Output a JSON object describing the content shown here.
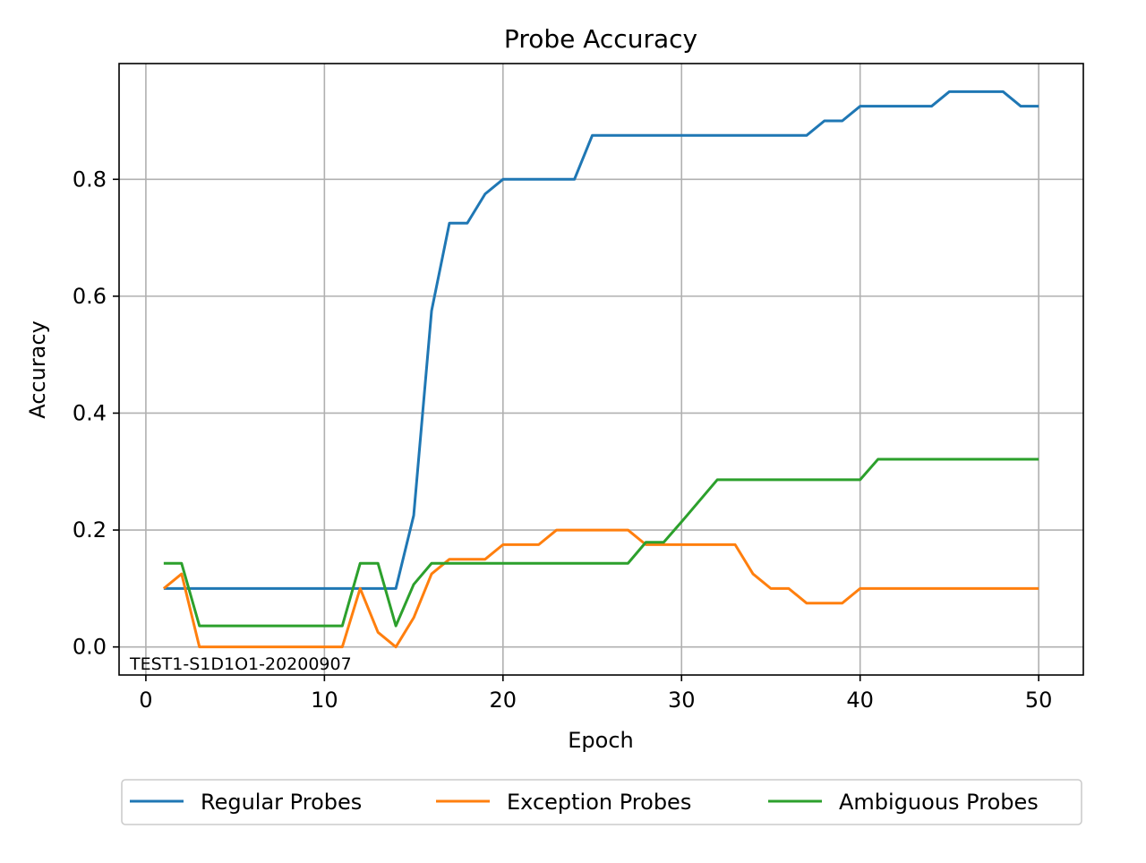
{
  "chart_data": {
    "type": "line",
    "title": "Probe Accuracy",
    "xlabel": "Epoch",
    "ylabel": "Accuracy",
    "xlim": [
      -1.5,
      52.5
    ],
    "ylim": [
      -0.048,
      0.998
    ],
    "xticks": [
      0,
      10,
      20,
      30,
      40,
      50
    ],
    "xtick_labels": [
      "0",
      "10",
      "20",
      "30",
      "40",
      "50"
    ],
    "yticks": [
      0.0,
      0.2,
      0.4,
      0.6,
      0.8
    ],
    "ytick_labels": [
      "0.0",
      "0.2",
      "0.4",
      "0.6",
      "0.8"
    ],
    "grid": true,
    "legend_position": "bottom-center",
    "annotation": "TEST1-S1D1O1-20200907",
    "x": [
      1,
      2,
      3,
      4,
      5,
      6,
      7,
      8,
      9,
      10,
      11,
      12,
      13,
      14,
      15,
      16,
      17,
      18,
      19,
      20,
      21,
      22,
      23,
      24,
      25,
      26,
      27,
      28,
      29,
      30,
      31,
      32,
      33,
      34,
      35,
      36,
      37,
      38,
      39,
      40,
      41,
      42,
      43,
      44,
      45,
      46,
      47,
      48,
      49,
      50
    ],
    "series": [
      {
        "name": "Regular Probes",
        "color": "#1f77b4",
        "values": [
          0.1,
          0.1,
          0.1,
          0.1,
          0.1,
          0.1,
          0.1,
          0.1,
          0.1,
          0.1,
          0.1,
          0.1,
          0.1,
          0.1,
          0.225,
          0.575,
          0.725,
          0.725,
          0.775,
          0.8,
          0.8,
          0.8,
          0.8,
          0.8,
          0.875,
          0.875,
          0.875,
          0.875,
          0.875,
          0.875,
          0.875,
          0.875,
          0.875,
          0.875,
          0.875,
          0.875,
          0.875,
          0.9,
          0.9,
          0.925,
          0.925,
          0.925,
          0.925,
          0.925,
          0.95,
          0.95,
          0.95,
          0.95,
          0.925,
          0.925
        ]
      },
      {
        "name": "Exception Probes",
        "color": "#ff7f0e",
        "values": [
          0.1,
          0.125,
          0.0,
          0.0,
          0.0,
          0.0,
          0.0,
          0.0,
          0.0,
          0.0,
          0.0,
          0.1,
          0.025,
          0.0,
          0.05,
          0.125,
          0.15,
          0.15,
          0.15,
          0.175,
          0.175,
          0.175,
          0.2,
          0.2,
          0.2,
          0.2,
          0.2,
          0.175,
          0.175,
          0.175,
          0.175,
          0.175,
          0.175,
          0.125,
          0.1,
          0.1,
          0.075,
          0.075,
          0.075,
          0.1,
          0.1,
          0.1,
          0.1,
          0.1,
          0.1,
          0.1,
          0.1,
          0.1,
          0.1,
          0.1
        ]
      },
      {
        "name": "Ambiguous Probes",
        "color": "#2ca02c",
        "values": [
          0.143,
          0.143,
          0.036,
          0.036,
          0.036,
          0.036,
          0.036,
          0.036,
          0.036,
          0.036,
          0.036,
          0.143,
          0.143,
          0.036,
          0.107,
          0.143,
          0.143,
          0.143,
          0.143,
          0.143,
          0.143,
          0.143,
          0.143,
          0.143,
          0.143,
          0.143,
          0.143,
          0.179,
          0.179,
          0.214,
          0.25,
          0.286,
          0.286,
          0.286,
          0.286,
          0.286,
          0.286,
          0.286,
          0.286,
          0.286,
          0.321,
          0.321,
          0.321,
          0.321,
          0.321,
          0.321,
          0.321,
          0.321,
          0.321,
          0.321
        ]
      }
    ]
  }
}
